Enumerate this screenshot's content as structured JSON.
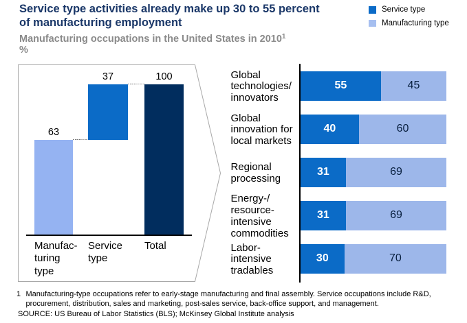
{
  "header": {
    "title_line1": "Service type activities already make up 30 to 55 percent",
    "title_line2": "of manufacturing employment",
    "subtitle": "Manufacturing occupations in the United States in 2010",
    "subtitle_superscript": "1",
    "unit_label": "%"
  },
  "legend": {
    "items": [
      {
        "label": "Service type",
        "color": "#0b6bc7"
      },
      {
        "label": "Manufacturing type",
        "color": "#a6bff0"
      }
    ]
  },
  "footnote": {
    "marker": "1",
    "text": "Manufacturing-type occupations refer to early-stage manufacturing and final assembly. Service occupations include R&D, procurement, distribution, sales and marketing, post-sales service, back-office support, and management."
  },
  "source": "SOURCE: US Bureau of Labor Statistics (BLS); McKinsey Global Institute analysis",
  "chart_data": [
    {
      "type": "bar",
      "subtype": "waterfall",
      "title": "Manufacturing occupations in the United States in 2010",
      "xlabel": "",
      "ylabel": "%",
      "ylim": [
        0,
        100
      ],
      "grid": false,
      "categories": [
        "Manufacturing type",
        "Service type",
        "Total"
      ],
      "category_label_lines": [
        [
          "Manufac-",
          "turing",
          "type"
        ],
        [
          "Service",
          "type"
        ],
        [
          "Total"
        ]
      ],
      "values": [
        63,
        37,
        100
      ],
      "segment_start": [
        0,
        63,
        0
      ],
      "value_labels": [
        "63",
        "37",
        "100"
      ],
      "colors": [
        "#95b3f2",
        "#0b6bc7",
        "#012d5e"
      ]
    },
    {
      "type": "bar",
      "subtype": "stacked-horizontal",
      "xlabel": "",
      "ylabel": "",
      "xlim": [
        0,
        100
      ],
      "grid": false,
      "legend_position": "top-right",
      "categories": [
        "Global technologies/innovators",
        "Global innovation for local markets",
        "Regional processing",
        "Energy-/resource-intensive commodities",
        "Labor-intensive tradables"
      ],
      "category_label_lines": [
        [
          "Global",
          "technologies/",
          "innovators"
        ],
        [
          "Global",
          "innovation for",
          "local markets"
        ],
        [
          "Regional",
          "processing"
        ],
        [
          "Energy-/",
          "resource-",
          "intensive",
          "commodities"
        ],
        [
          "Labor-",
          "intensive",
          "tradables"
        ]
      ],
      "series": [
        {
          "name": "Service type",
          "color": "#0b6bc7",
          "label_color": "#ffffff",
          "values": [
            55,
            40,
            31,
            31,
            30
          ]
        },
        {
          "name": "Manufacturing type",
          "color": "#9db7ea",
          "label_color": "#071e3d",
          "values": [
            45,
            60,
            69,
            69,
            70
          ]
        }
      ]
    }
  ]
}
